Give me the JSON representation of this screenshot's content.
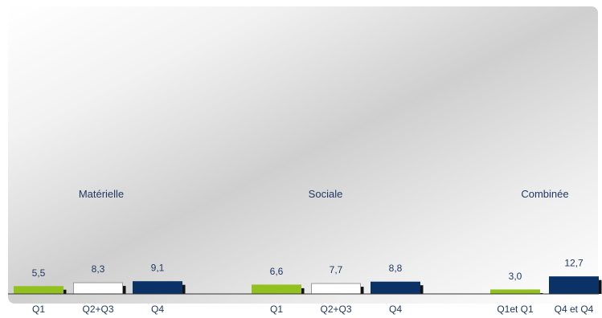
{
  "chart_data": {
    "type": "bar",
    "title": "",
    "xlabel": "",
    "ylabel": "",
    "ylim": [
      0,
      60
    ],
    "grid": false,
    "legend": "none",
    "groups": [
      {
        "name": "Matérielle",
        "categories": [
          "Q1",
          "Q2+Q3",
          "Q4"
        ],
        "values": [
          5.5,
          8.3,
          9.1
        ],
        "labels": [
          "5,5",
          "8,3",
          "9,1"
        ]
      },
      {
        "name": "Sociale",
        "categories": [
          "Q1",
          "Q2+Q3",
          "Q4"
        ],
        "values": [
          6.6,
          7.7,
          8.8
        ],
        "labels": [
          "6,6",
          "7,7",
          "8,8"
        ]
      },
      {
        "name": "Combinée",
        "categories": [
          "Q1et Q1",
          "Q4 et Q4"
        ],
        "values": [
          3.0,
          12.7
        ],
        "labels": [
          "3,0",
          "12,7"
        ]
      }
    ],
    "colors": {
      "Q1": "#92c01e",
      "Q2+Q3": "#ffffff",
      "Q4": "#0a3266",
      "Q1et Q1": "#92c01e",
      "Q4 et Q4": "#0a3266",
      "shadow": "#111111",
      "text": "#1f3864",
      "axis": "#333333"
    }
  }
}
